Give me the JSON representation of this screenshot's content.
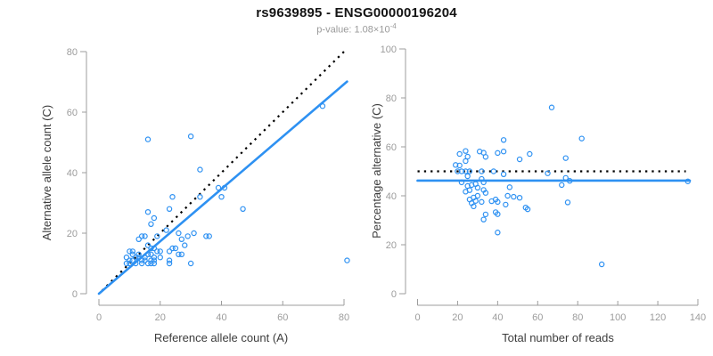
{
  "header": {
    "title": "rs9639895 - ENSG00000196204",
    "p_label": "p-value: 1.08×10",
    "p_exponent": "-4"
  },
  "colors": {
    "accent_blue": "#2e91f2",
    "identity_black": "#000000",
    "axis_gray": "#9c9c9c",
    "tick_label_gray": "#9c9c9c",
    "axis_title_gray": "#3c3c3c",
    "title_black": "#141414",
    "subtitle_gray": "#9a9a9a",
    "background": "#ffffff"
  },
  "chart_data": [
    {
      "type": "scatter",
      "name": "allele-counts-scatter",
      "xlabel": "Reference allele count (A)",
      "ylabel": "Alternative allele count (C)",
      "xlim": [
        0,
        80
      ],
      "ylim": [
        0,
        80
      ],
      "xticks": [
        0,
        20,
        40,
        60,
        80
      ],
      "yticks": [
        0,
        20,
        40,
        60,
        80
      ],
      "grid": false,
      "legend": "none",
      "point_style": "open-circle",
      "point_color": "#2e91f2",
      "points": [
        [
          16,
          51
        ],
        [
          30,
          52
        ],
        [
          73,
          62
        ],
        [
          33,
          41
        ],
        [
          39,
          35
        ],
        [
          41,
          35
        ],
        [
          40,
          32
        ],
        [
          33,
          32
        ],
        [
          47,
          28
        ],
        [
          81,
          11
        ],
        [
          24,
          32
        ],
        [
          23,
          28
        ],
        [
          16,
          27
        ],
        [
          18,
          25
        ],
        [
          17,
          23
        ],
        [
          22,
          21
        ],
        [
          26,
          20
        ],
        [
          31,
          20
        ],
        [
          19,
          19
        ],
        [
          16,
          16
        ],
        [
          27,
          18
        ],
        [
          13,
          18
        ],
        [
          14,
          19
        ],
        [
          15,
          19
        ],
        [
          35,
          19
        ],
        [
          36,
          19
        ],
        [
          29,
          19
        ],
        [
          28,
          16
        ],
        [
          19,
          14
        ],
        [
          20,
          14
        ],
        [
          24,
          15
        ],
        [
          25,
          15
        ],
        [
          26,
          13
        ],
        [
          23,
          14
        ],
        [
          17,
          15
        ],
        [
          18,
          15
        ],
        [
          16,
          13
        ],
        [
          17,
          13
        ],
        [
          18,
          12
        ],
        [
          13,
          12
        ],
        [
          14,
          11
        ],
        [
          15,
          12
        ],
        [
          12,
          10
        ],
        [
          14,
          10
        ],
        [
          17,
          11
        ],
        [
          18,
          11
        ],
        [
          17,
          10
        ],
        [
          18,
          10
        ],
        [
          23,
          11
        ],
        [
          23,
          10
        ],
        [
          30,
          10
        ],
        [
          27,
          13
        ],
        [
          16,
          10
        ],
        [
          20,
          12
        ],
        [
          15,
          11
        ],
        [
          10,
          14
        ],
        [
          11,
          14
        ],
        [
          11,
          13
        ],
        [
          10,
          11
        ],
        [
          11,
          11
        ],
        [
          10,
          10
        ],
        [
          9,
          10
        ],
        [
          9,
          12
        ],
        [
          12,
          12
        ],
        [
          13,
          13
        ]
      ],
      "lines": [
        {
          "name": "identity-line",
          "style": "dotted",
          "color": "#000000",
          "width": 2.2,
          "x1": 1,
          "y1": 1,
          "x2": 81,
          "y2": 81
        },
        {
          "name": "fit-line",
          "style": "solid",
          "color": "#2e91f2",
          "width": 2.6,
          "x1": 0,
          "y1": 0,
          "x2": 81,
          "y2": 70.1
        }
      ]
    },
    {
      "type": "scatter",
      "name": "percentage-alternative-scatter",
      "xlabel": "Total number of reads",
      "ylabel": "Percentage alternative (C)",
      "xlim": [
        0,
        140
      ],
      "ylim": [
        0,
        100
      ],
      "xticks": [
        0,
        20,
        40,
        60,
        80,
        100,
        120,
        140
      ],
      "yticks": [
        0,
        20,
        40,
        60,
        80,
        100
      ],
      "grid": false,
      "legend": "none",
      "point_style": "open-circle",
      "point_color": "#2e91f2",
      "points": [
        [
          67,
          76.1
        ],
        [
          82,
          63.4
        ],
        [
          135,
          45.9
        ],
        [
          74,
          55.4
        ],
        [
          74,
          47.3
        ],
        [
          76,
          46.1
        ],
        [
          72,
          44.4
        ],
        [
          65,
          49.2
        ],
        [
          75,
          37.3
        ],
        [
          92,
          12.0
        ],
        [
          56,
          57.1
        ],
        [
          51,
          54.9
        ],
        [
          43,
          62.8
        ],
        [
          43,
          58.1
        ],
        [
          40,
          57.5
        ],
        [
          43,
          48.8
        ],
        [
          46,
          43.5
        ],
        [
          51,
          39.2
        ],
        [
          38,
          50.0
        ],
        [
          32,
          50.0
        ],
        [
          45,
          40.0
        ],
        [
          31,
          58.1
        ],
        [
          33,
          57.6
        ],
        [
          34,
          55.9
        ],
        [
          54,
          35.2
        ],
        [
          55,
          34.5
        ],
        [
          48,
          39.6
        ],
        [
          44,
          36.4
        ],
        [
          33,
          42.4
        ],
        [
          34,
          41.2
        ],
        [
          39,
          38.5
        ],
        [
          40,
          37.5
        ],
        [
          39,
          33.3
        ],
        [
          37,
          37.8
        ],
        [
          32,
          46.9
        ],
        [
          33,
          45.5
        ],
        [
          29,
          44.8
        ],
        [
          30,
          43.3
        ],
        [
          30,
          40.0
        ],
        [
          25,
          48.0
        ],
        [
          25,
          44.0
        ],
        [
          27,
          44.4
        ],
        [
          22,
          45.5
        ],
        [
          24,
          41.7
        ],
        [
          28,
          39.3
        ],
        [
          29,
          37.9
        ],
        [
          27,
          37.0
        ],
        [
          28,
          35.7
        ],
        [
          34,
          32.4
        ],
        [
          33,
          30.3
        ],
        [
          40,
          25.0
        ],
        [
          40,
          32.5
        ],
        [
          26,
          38.5
        ],
        [
          32,
          37.5
        ],
        [
          26,
          42.3
        ],
        [
          24,
          58.3
        ],
        [
          25,
          56.0
        ],
        [
          24,
          54.2
        ],
        [
          21,
          52.4
        ],
        [
          22,
          50.0
        ],
        [
          20,
          50.0
        ],
        [
          19,
          52.6
        ],
        [
          21,
          57.1
        ],
        [
          24,
          50.0
        ],
        [
          26,
          50.0
        ]
      ],
      "lines": [
        {
          "name": "expected-50pct-line",
          "style": "dotted",
          "color": "#000000",
          "width": 2.2,
          "x1": 0,
          "y1": 50,
          "x2": 134,
          "y2": 50
        },
        {
          "name": "fit-line",
          "style": "solid",
          "color": "#2e91f2",
          "width": 2.6,
          "x1": 0,
          "y1": 46.2,
          "x2": 136,
          "y2": 46.2
        }
      ]
    }
  ]
}
